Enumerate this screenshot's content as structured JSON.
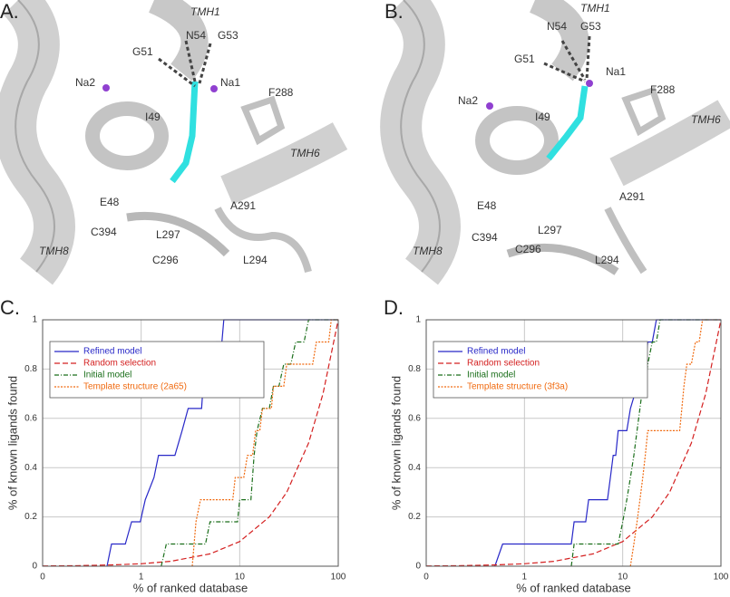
{
  "structure_panels": [
    {
      "label": "A.",
      "residues": [
        "TMH1",
        "N54",
        "G53",
        "G51",
        "Na1",
        "Na2",
        "F288",
        "I49",
        "TMH6",
        "E48",
        "A291",
        "L297",
        "C394",
        "TMH8",
        "C296",
        "L294"
      ]
    },
    {
      "label": "B.",
      "residues": [
        "TMH1",
        "N54",
        "G53",
        "G51",
        "Na1",
        "Na2",
        "F288",
        "I49",
        "TMH6",
        "E48",
        "A291",
        "L297",
        "C394",
        "TMH8",
        "C296",
        "L294"
      ]
    }
  ],
  "chart_data": [
    {
      "type": "line",
      "panel_label": "C.",
      "x_label": "% of ranked database",
      "y_label": "% of known ligands found",
      "log_x": true,
      "grid": true,
      "legend": "upper-left",
      "xlim": [
        0.1,
        100
      ],
      "xticks": [
        {
          "value": 0.1,
          "label": "0"
        },
        1,
        10,
        100
      ],
      "ylim": [
        0,
        1
      ],
      "yticks": [
        0,
        0.2,
        0.4,
        0.6,
        0.8,
        1
      ],
      "series": [
        {
          "name": "Refined model",
          "color": "#2828c8",
          "linestyle": "solid",
          "x": [
            0.45,
            0.5,
            0.69,
            0.8,
            0.98,
            1.1,
            1.35,
            1.5,
            2.2,
            2.6,
            3.0,
            3.4,
            4.1,
            4.4,
            5.5,
            5.8,
            6.6,
            6.9,
            100
          ],
          "values": [
            0,
            0.09,
            0.09,
            0.18,
            0.18,
            0.27,
            0.36,
            0.45,
            0.45,
            0.55,
            0.64,
            0.64,
            0.64,
            0.82,
            0.82,
            0.91,
            0.91,
            1,
            1
          ]
        },
        {
          "name": "Random selection",
          "color": "#d42020",
          "linestyle": "dashed",
          "x": [
            0.1,
            0.2,
            0.5,
            1,
            2,
            5,
            10,
            20,
            30,
            50,
            70,
            100
          ],
          "values": [
            0.001,
            0.002,
            0.005,
            0.01,
            0.02,
            0.05,
            0.1,
            0.2,
            0.3,
            0.5,
            0.7,
            1
          ]
        },
        {
          "name": "Initial model",
          "color": "#1a6e1a",
          "linestyle": "dashdot",
          "x": [
            1.6,
            1.8,
            4.5,
            5,
            9.5,
            10,
            13,
            14,
            15,
            17,
            20,
            22,
            25,
            28,
            33,
            37,
            45,
            50,
            100
          ],
          "values": [
            0,
            0.09,
            0.09,
            0.18,
            0.18,
            0.27,
            0.27,
            0.45,
            0.55,
            0.64,
            0.64,
            0.73,
            0.73,
            0.82,
            0.82,
            0.91,
            0.91,
            1,
            1
          ]
        },
        {
          "name": "Template structure (2a65)",
          "color": "#f06a10",
          "linestyle": "dotted",
          "x": [
            3.3,
            3.6,
            4,
            8.5,
            9,
            11,
            12,
            13.5,
            14.5,
            16,
            17,
            21,
            22,
            28,
            30,
            38,
            40,
            55,
            60,
            80,
            85,
            100
          ],
          "values": [
            0,
            0.18,
            0.27,
            0.27,
            0.36,
            0.36,
            0.45,
            0.45,
            0.55,
            0.55,
            0.64,
            0.64,
            0.73,
            0.73,
            0.82,
            0.82,
            0.82,
            0.82,
            0.91,
            0.91,
            1,
            1
          ]
        }
      ]
    },
    {
      "type": "line",
      "panel_label": "D.",
      "x_label": "% of ranked database",
      "y_label": "% of known ligands found",
      "log_x": true,
      "grid": true,
      "legend": "upper-left",
      "xlim": [
        0.1,
        100
      ],
      "xticks": [
        {
          "value": 0.1,
          "label": "0"
        },
        1,
        10,
        100
      ],
      "ylim": [
        0,
        1
      ],
      "yticks": [
        0,
        0.2,
        0.4,
        0.6,
        0.8,
        1
      ],
      "series": [
        {
          "name": "Refined model",
          "color": "#2828c8",
          "linestyle": "solid",
          "x": [
            0.5,
            0.6,
            3.0,
            3.2,
            4.2,
            4.5,
            7,
            7.5,
            8,
            8.5,
            9,
            11,
            12,
            14,
            15,
            17,
            18,
            20,
            22,
            100
          ],
          "values": [
            0,
            0.09,
            0.09,
            0.18,
            0.18,
            0.27,
            0.27,
            0.36,
            0.45,
            0.45,
            0.55,
            0.55,
            0.64,
            0.73,
            0.82,
            0.82,
            0.91,
            0.91,
            1,
            1
          ]
        },
        {
          "name": "Random selection",
          "color": "#d42020",
          "linestyle": "dashed",
          "x": [
            0.1,
            0.2,
            0.5,
            1,
            2,
            5,
            10,
            20,
            30,
            50,
            70,
            100
          ],
          "values": [
            0.001,
            0.002,
            0.005,
            0.01,
            0.02,
            0.05,
            0.1,
            0.2,
            0.3,
            0.5,
            0.7,
            1
          ]
        },
        {
          "name": "Initial model",
          "color": "#1a6e1a",
          "linestyle": "dashdot",
          "x": [
            3,
            3.2,
            9,
            10,
            11,
            12,
            13,
            14,
            15,
            16,
            17,
            18,
            20,
            22,
            24,
            100
          ],
          "values": [
            0,
            0.09,
            0.09,
            0.18,
            0.27,
            0.36,
            0.45,
            0.55,
            0.64,
            0.73,
            0.73,
            0.82,
            0.91,
            0.91,
            1,
            1
          ]
        },
        {
          "name": "Template structure (3f3a)",
          "color": "#f06a10",
          "linestyle": "dotted",
          "x": [
            12,
            13,
            14,
            15,
            16,
            17,
            18,
            38,
            40,
            42,
            45,
            50,
            55,
            60,
            65,
            100
          ],
          "values": [
            0,
            0.09,
            0.18,
            0.27,
            0.36,
            0.45,
            0.55,
            0.55,
            0.64,
            0.73,
            0.82,
            0.82,
            0.91,
            0.91,
            1,
            1
          ]
        }
      ]
    }
  ]
}
